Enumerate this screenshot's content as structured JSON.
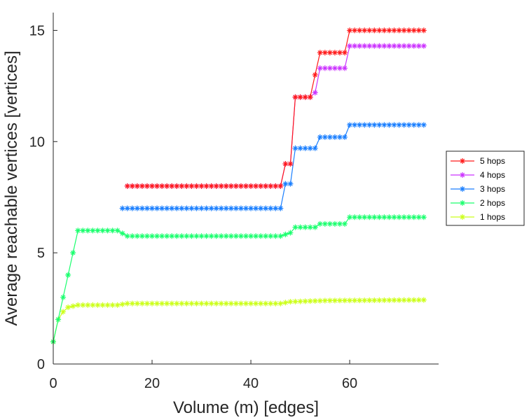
{
  "chart_data": {
    "type": "line",
    "xlabel": "Volume (m) [edges]",
    "ylabel": "Average reachable vertices [vertices]",
    "xlim": [
      0,
      78
    ],
    "ylim": [
      0,
      15.8
    ],
    "xticks": [
      0,
      20,
      40,
      60
    ],
    "yticks": [
      0,
      5,
      10,
      15
    ],
    "grid": false,
    "legend_position": "right",
    "marker": "asterisk",
    "series": [
      {
        "name": "5 hops",
        "color": "#ff1a1a",
        "points": [
          [
            15,
            8
          ],
          [
            46,
            8
          ],
          [
            47,
            9
          ],
          [
            48,
            9
          ],
          [
            49,
            12
          ],
          [
            52,
            12
          ],
          [
            53,
            13
          ],
          [
            54,
            14
          ],
          [
            59,
            14
          ],
          [
            60,
            15
          ],
          [
            75,
            15
          ]
        ]
      },
      {
        "name": "4 hops",
        "color": "#cc33ff",
        "points": [
          [
            15,
            8
          ],
          [
            46,
            8
          ],
          [
            47,
            9
          ],
          [
            48,
            9
          ],
          [
            49,
            12
          ],
          [
            52,
            12
          ],
          [
            53,
            12.2
          ],
          [
            54,
            13.3
          ],
          [
            59,
            13.3
          ],
          [
            60,
            14.3
          ],
          [
            75,
            14.3
          ]
        ]
      },
      {
        "name": "3 hops",
        "color": "#1a7fff",
        "points": [
          [
            14,
            7
          ],
          [
            46,
            7
          ],
          [
            47,
            8.1
          ],
          [
            48,
            8.1
          ],
          [
            49,
            9.7
          ],
          [
            53,
            9.7
          ],
          [
            54,
            10.2
          ],
          [
            59,
            10.2
          ],
          [
            60,
            10.75
          ],
          [
            75,
            10.75
          ]
        ]
      },
      {
        "name": "2 hops",
        "color": "#1aff6e",
        "points": [
          [
            0,
            1
          ],
          [
            2,
            3
          ],
          [
            3,
            4
          ],
          [
            4,
            5
          ],
          [
            5,
            6
          ],
          [
            13,
            6
          ],
          [
            15,
            5.75
          ],
          [
            46,
            5.75
          ],
          [
            48,
            5.9
          ],
          [
            49,
            6.15
          ],
          [
            53,
            6.15
          ],
          [
            54,
            6.3
          ],
          [
            59,
            6.3
          ],
          [
            60,
            6.6
          ],
          [
            75,
            6.6
          ]
        ]
      },
      {
        "name": "1 hops",
        "color": "#ccff1a",
        "points": [
          [
            0,
            1
          ],
          [
            1,
            2
          ],
          [
            2,
            2.35
          ],
          [
            3,
            2.55
          ],
          [
            5,
            2.65
          ],
          [
            13,
            2.65
          ],
          [
            15,
            2.72
          ],
          [
            46,
            2.72
          ],
          [
            48,
            2.8
          ],
          [
            55,
            2.85
          ],
          [
            75,
            2.88
          ]
        ]
      }
    ]
  }
}
